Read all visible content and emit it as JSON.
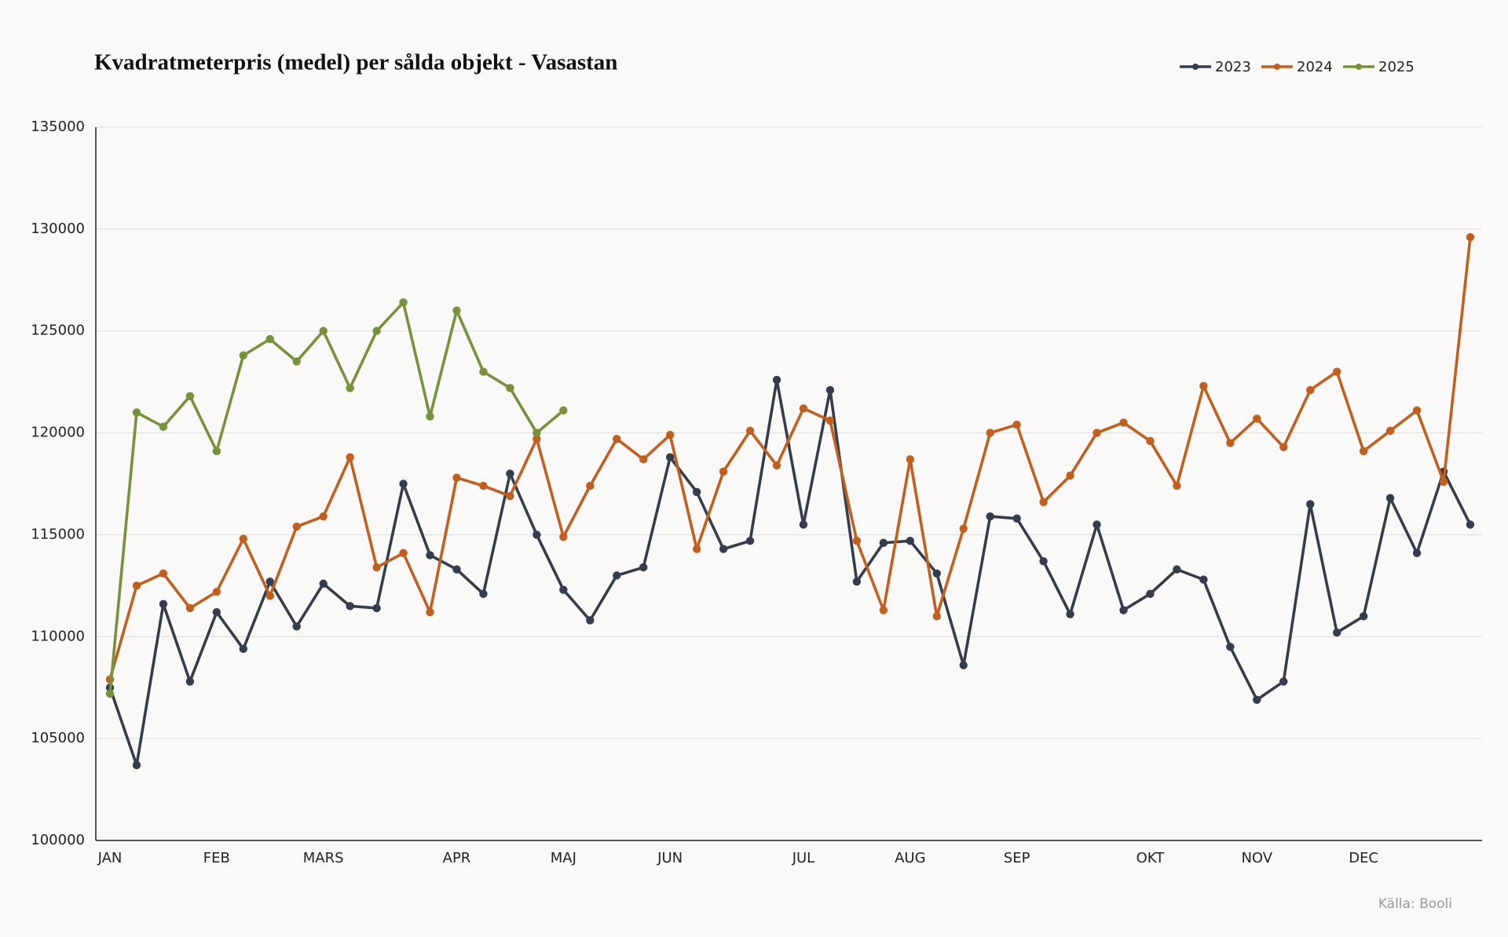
{
  "chart_data": {
    "type": "line",
    "title": "Kvadratmeterpris (medel) per sålda objekt - Vasastan",
    "source": "Källa: Booli",
    "categories": [
      "JAN",
      null,
      null,
      null,
      "FEB",
      null,
      null,
      null,
      "MARS",
      null,
      null,
      null,
      null,
      "APR",
      null,
      null,
      null,
      "MAJ",
      null,
      null,
      null,
      "JUN",
      null,
      null,
      null,
      null,
      "JUL",
      null,
      null,
      null,
      "AUG",
      null,
      null,
      null,
      "SEP",
      null,
      null,
      null,
      null,
      "OKT",
      null,
      null,
      null,
      "NOV",
      null,
      null,
      null,
      "DEC",
      null,
      null,
      null,
      null
    ],
    "series": [
      {
        "name": "2023",
        "color": "#343d4e",
        "values": [
          107500,
          103700,
          111600,
          107800,
          111200,
          109400,
          112700,
          110500,
          112600,
          111500,
          111400,
          117500,
          114000,
          113300,
          112100,
          118000,
          115000,
          112300,
          110800,
          113000,
          113400,
          118800,
          117100,
          114300,
          114700,
          122600,
          115500,
          122100,
          112700,
          114600,
          114700,
          113100,
          108600,
          115900,
          115800,
          113700,
          111100,
          115500,
          111300,
          112100,
          113300,
          112800,
          109500,
          106900,
          107800,
          116500,
          110200,
          111000,
          116800,
          114100,
          118100,
          115500
        ]
      },
      {
        "name": "2024",
        "color": "#c05f1f",
        "values": [
          107900,
          112500,
          113100,
          111400,
          112200,
          114800,
          112000,
          115400,
          115900,
          118800,
          113400,
          114100,
          111200,
          117800,
          117400,
          116900,
          119700,
          114900,
          117400,
          119700,
          118700,
          119900,
          114300,
          118100,
          120100,
          118400,
          121200,
          120600,
          114700,
          111300,
          118700,
          111000,
          115300,
          120000,
          120400,
          116600,
          117900,
          120000,
          120500,
          119600,
          117400,
          122300,
          119500,
          120700,
          119300,
          122100,
          123000,
          119100,
          120100,
          121100,
          117600,
          129600
        ]
      },
      {
        "name": "2025",
        "color": "#76923c",
        "values": [
          107200,
          121000,
          120300,
          121800,
          119100,
          123800,
          124600,
          123500,
          125000,
          122200,
          125000,
          126400,
          120800,
          126000,
          123000,
          122200,
          120000,
          121100,
          null,
          null,
          null,
          null,
          null,
          null,
          null,
          null,
          null,
          null,
          null,
          null,
          null,
          null,
          null,
          null,
          null,
          null,
          null,
          null,
          null,
          null,
          null,
          null,
          null,
          null,
          null,
          null,
          null,
          null,
          null,
          null,
          null,
          null
        ]
      }
    ],
    "ylim": [
      100000,
      135000
    ],
    "yticks": [
      100000,
      105000,
      110000,
      115000,
      120000,
      125000,
      130000,
      135000
    ],
    "grid": true,
    "legend": "top-right"
  }
}
